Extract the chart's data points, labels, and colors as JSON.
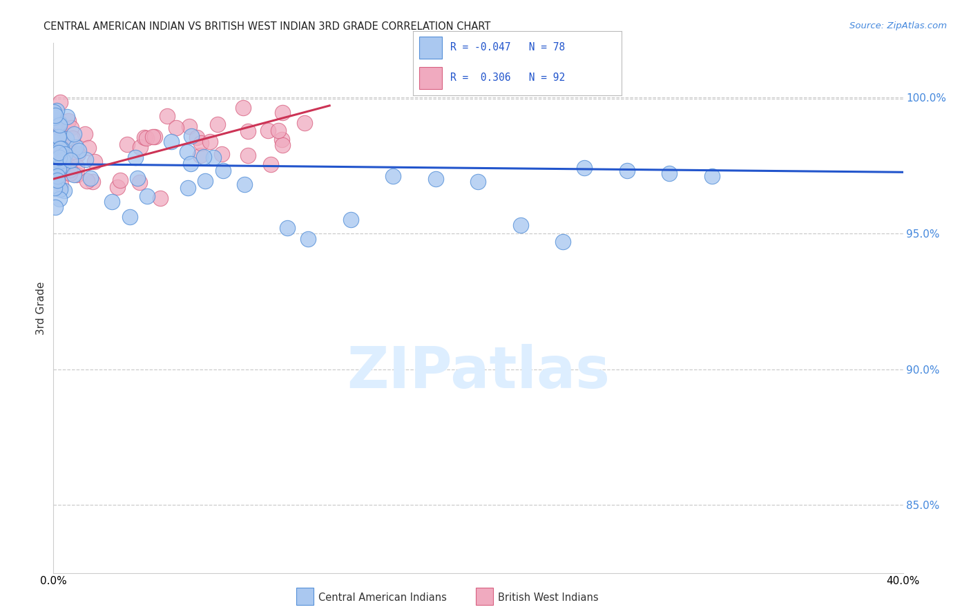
{
  "title": "CENTRAL AMERICAN INDIAN VS BRITISH WEST INDIAN 3RD GRADE CORRELATION CHART",
  "source": "Source: ZipAtlas.com",
  "ylabel": "3rd Grade",
  "xlim": [
    0.0,
    40.0
  ],
  "ylim": [
    82.5,
    102.0
  ],
  "ytick_positions": [
    85.0,
    90.0,
    95.0,
    100.0
  ],
  "ytick_labels": [
    "85.0%",
    "90.0%",
    "95.0%",
    "100.0%"
  ],
  "xtick_positions": [
    0,
    10,
    20,
    30,
    40
  ],
  "xtick_labels": [
    "0.0%",
    "",
    "",
    "",
    "40.0%"
  ],
  "blue_color": "#aac8f0",
  "blue_edge_color": "#5590d8",
  "pink_color": "#f0aabf",
  "pink_edge_color": "#d86080",
  "blue_line_color": "#2255cc",
  "pink_line_color": "#cc3355",
  "grid_color": "#cccccc",
  "legend_text_color": "#2255cc",
  "right_tick_color": "#4488dd",
  "watermark_color": "#ddeeff",
  "blue_line_y0": 97.55,
  "blue_line_y1": 97.25,
  "pink_line_x0": 0.0,
  "pink_line_x1": 13.0,
  "pink_line_y0": 97.0,
  "pink_line_y1": 99.7,
  "top_dashed_y": 99.95,
  "legend_r1": "R = -0.047",
  "legend_n1": "N = 78",
  "legend_r2": "R =  0.306",
  "legend_n2": "N = 92"
}
